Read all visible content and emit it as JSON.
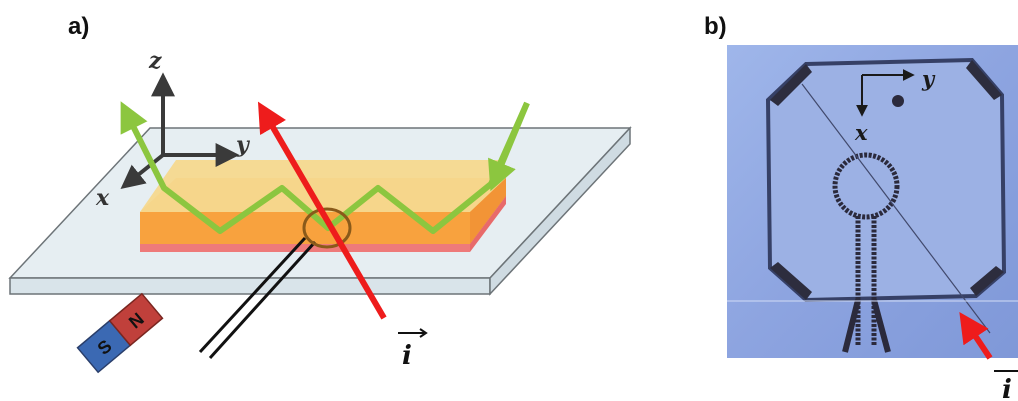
{
  "panels": {
    "a": {
      "label": "a)"
    },
    "b": {
      "label": "b)"
    }
  },
  "axes_a": {
    "z": "z",
    "y": "y",
    "x": "x"
  },
  "axes_b": {
    "y": "y",
    "x": "x"
  },
  "magnet": {
    "south": "S",
    "north": "N"
  },
  "current": {
    "symbol": "i",
    "arrow": "→"
  },
  "colors": {
    "substrate": "#e6eef2",
    "substrate_edge": "#6d7478",
    "film_top": "#f5d88e",
    "film_side": "#f6a94e",
    "film_base": "#ee7a7a",
    "laser": "#ee1c1c",
    "beam": "#8cc63f",
    "coil": "#8a5a1a",
    "magnet_south": "#3b69b3",
    "magnet_north": "#c0403b",
    "photo_bg": "#8aa3e0",
    "photo_sample": "#9bb0e2",
    "photo_pattern": "#2b2a3c"
  }
}
